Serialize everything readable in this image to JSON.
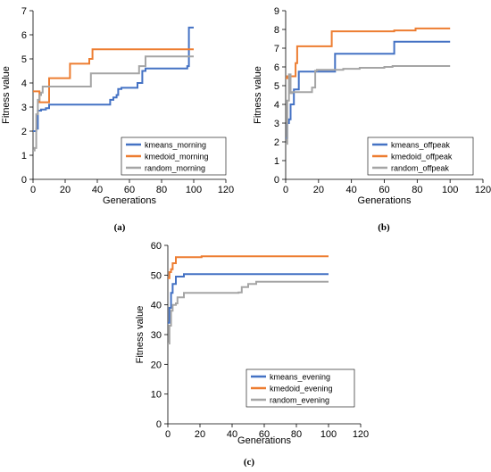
{
  "chart_data": [
    {
      "type": "line",
      "caption": "(a)",
      "xlabel": "Generations",
      "ylabel": "Fitness value",
      "xlim": [
        0,
        120
      ],
      "ylim": [
        0,
        7
      ],
      "xticks": [
        0,
        20,
        40,
        60,
        80,
        100,
        120
      ],
      "yticks": [
        0,
        1,
        2,
        3,
        4,
        5,
        6,
        7
      ],
      "legend_position": "bottom-right",
      "series": [
        {
          "name": "kmeans_morning",
          "color": "#4472C4",
          "x": [
            0,
            1,
            2,
            3,
            5,
            8,
            10,
            47,
            48,
            50,
            52,
            53,
            55,
            64,
            65,
            68,
            70,
            76,
            83,
            92,
            96,
            97,
            100
          ],
          "y": [
            2.0,
            2.0,
            2.1,
            2.85,
            2.9,
            2.95,
            3.1,
            3.1,
            3.3,
            3.4,
            3.5,
            3.75,
            3.8,
            3.8,
            4.0,
            4.5,
            4.6,
            4.6,
            4.6,
            4.6,
            4.7,
            6.3,
            6.3
          ]
        },
        {
          "name": "kmedoid_morning",
          "color": "#ED7D31",
          "x": [
            0,
            3,
            4,
            9,
            10,
            22,
            23,
            34,
            35,
            37,
            100
          ],
          "y": [
            3.65,
            3.65,
            3.2,
            3.2,
            4.2,
            4.2,
            4.8,
            4.8,
            5.0,
            5.4,
            5.4
          ]
        },
        {
          "name": "random_morning",
          "color": "#A5A5A5",
          "x": [
            0,
            1,
            2,
            3,
            4,
            5,
            6,
            35,
            36,
            65,
            66,
            70,
            100
          ],
          "y": [
            1.2,
            1.3,
            2.7,
            3.3,
            3.5,
            3.6,
            3.85,
            3.85,
            4.4,
            4.4,
            4.7,
            5.1,
            5.1
          ]
        }
      ]
    },
    {
      "type": "line",
      "caption": "(b)",
      "xlabel": "Generations",
      "ylabel": "Fitness value",
      "xlim": [
        0,
        120
      ],
      "ylim": [
        0,
        9
      ],
      "xticks": [
        0,
        20,
        40,
        60,
        80,
        100,
        120
      ],
      "yticks": [
        0,
        1,
        2,
        3,
        4,
        5,
        6,
        7,
        8,
        9
      ],
      "legend_position": "bottom-right",
      "series": [
        {
          "name": "kmeans_offpeak",
          "color": "#4472C4",
          "x": [
            0,
            1,
            2,
            3,
            5,
            8,
            28,
            30,
            64,
            66,
            100
          ],
          "y": [
            2.2,
            3.0,
            3.2,
            4.0,
            4.8,
            5.75,
            5.75,
            6.7,
            6.7,
            7.35,
            7.35
          ]
        },
        {
          "name": "kmedoid_offpeak",
          "color": "#ED7D31",
          "x": [
            0,
            1,
            2,
            3,
            6,
            7,
            27,
            28,
            65,
            66,
            78,
            79,
            100
          ],
          "y": [
            5.4,
            5.5,
            5.4,
            5.5,
            6.2,
            7.1,
            7.1,
            7.9,
            7.9,
            7.95,
            7.95,
            8.05,
            8.05
          ]
        },
        {
          "name": "random_offpeak",
          "color": "#A5A5A5",
          "x": [
            0,
            1,
            2,
            3,
            4,
            15,
            16,
            18,
            19,
            30,
            35,
            40,
            45,
            50,
            60,
            65,
            100
          ],
          "y": [
            1.9,
            4.2,
            5.6,
            4.6,
            4.65,
            4.65,
            4.9,
            5.8,
            5.85,
            5.85,
            5.9,
            5.9,
            5.95,
            5.95,
            6.0,
            6.05,
            6.05
          ]
        }
      ]
    },
    {
      "type": "line",
      "caption": "(c)",
      "xlabel": "Generations",
      "ylabel": "Fitness value",
      "xlim": [
        0,
        120
      ],
      "ylim": [
        0,
        60
      ],
      "xticks": [
        0,
        20,
        40,
        60,
        80,
        100,
        120
      ],
      "yticks": [
        0,
        10,
        20,
        30,
        40,
        50,
        60
      ],
      "legend_position": "bottom-right",
      "series": [
        {
          "name": "kmeans_evening",
          "color": "#4472C4",
          "x": [
            0,
            1,
            2,
            3,
            5,
            7,
            10,
            100
          ],
          "y": [
            34,
            39,
            44,
            47,
            49.5,
            49.5,
            50.3,
            50.3
          ]
        },
        {
          "name": "kmedoid_evening",
          "color": "#ED7D31",
          "x": [
            0,
            1,
            2,
            3,
            5,
            20,
            21,
            100
          ],
          "y": [
            49,
            51,
            52,
            54,
            56,
            56,
            56.3,
            56.3
          ]
        },
        {
          "name": "random_evening",
          "color": "#A5A5A5",
          "x": [
            0,
            1,
            2,
            3,
            5,
            6,
            10,
            43,
            44,
            46,
            50,
            55,
            60,
            100
          ],
          "y": [
            27,
            33,
            38,
            40,
            40.5,
            42.5,
            44,
            44,
            44.2,
            46,
            47,
            47.8,
            47.8,
            47.8
          ]
        }
      ]
    }
  ]
}
